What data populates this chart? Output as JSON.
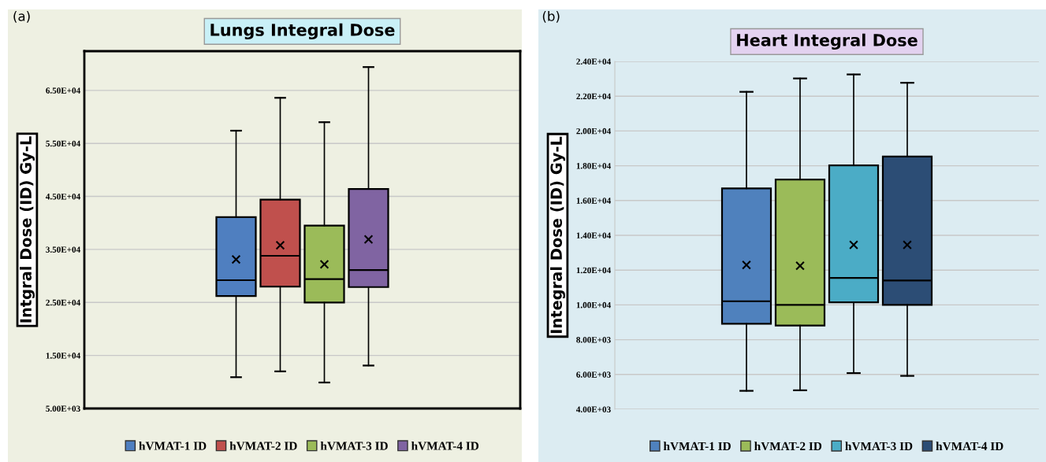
{
  "chart_data": [
    {
      "type": "box",
      "title": "Lungs Integral Dose",
      "ylabel": "Intgral Dose (ID) Gy-L",
      "annotations": [
        "(a)"
      ],
      "categories": [
        null
      ],
      "ylim": [
        5000,
        72400
      ],
      "yticks": [
        {
          "value": 5000,
          "label": "5.00E+03"
        },
        {
          "value": 15000,
          "label": "1.50E+04"
        },
        {
          "value": 25000,
          "label": "2.50E+04"
        },
        {
          "value": 35000,
          "label": "3.50E+04"
        },
        {
          "value": 45000,
          "label": "4.50E+04"
        },
        {
          "value": 55000,
          "label": "5.50E+04"
        },
        {
          "value": 65000,
          "label": "6.50E+04"
        }
      ],
      "grid": "y",
      "legend": "bottom",
      "series": [
        {
          "name": "hVMAT-1 ID",
          "color": "#4f7fc0",
          "boxes": [
            {
              "low": 10900,
              "q1": 26200,
              "median": 29200,
              "q3": 41100,
              "high": 57400,
              "mean": 33100
            }
          ]
        },
        {
          "name": "hVMAT-2 ID",
          "color": "#c0504d",
          "boxes": [
            {
              "low": 12000,
              "q1": 28000,
              "median": 33800,
              "q3": 44400,
              "high": 63600,
              "mean": 35800
            }
          ]
        },
        {
          "name": "hVMAT-3 ID",
          "color": "#9bbb59",
          "boxes": [
            {
              "low": 9900,
              "q1": 25000,
              "median": 29400,
              "q3": 39500,
              "high": 59000,
              "mean": 32200
            }
          ]
        },
        {
          "name": "hVMAT-4 ID",
          "color": "#8064a2",
          "boxes": [
            {
              "low": 13100,
              "q1": 27900,
              "median": 31100,
              "q3": 46400,
              "high": 69400,
              "mean": 36900
            }
          ]
        }
      ]
    },
    {
      "type": "box",
      "title": "Heart Integral Dose",
      "ylabel": "Integral Dose (ID) Gy-L",
      "annotations": [
        "(b)"
      ],
      "categories": [
        null
      ],
      "ylim": [
        4000,
        24000
      ],
      "yticks": [
        {
          "value": 4000,
          "label": "4.00E+03"
        },
        {
          "value": 6000,
          "label": "6.00E+03"
        },
        {
          "value": 8000,
          "label": "8.00E+03"
        },
        {
          "value": 10000,
          "label": "1.00E+04"
        },
        {
          "value": 12000,
          "label": "1.20E+04"
        },
        {
          "value": 14000,
          "label": "1.40E+04"
        },
        {
          "value": 16000,
          "label": "1.60E+04"
        },
        {
          "value": 18000,
          "label": "1.80E+04"
        },
        {
          "value": 20000,
          "label": "2.00E+04"
        },
        {
          "value": 22000,
          "label": "2.20E+04"
        },
        {
          "value": 24000,
          "label": "2.40E+04"
        }
      ],
      "grid": "y",
      "legend": "bottom",
      "series": [
        {
          "name": "hVMAT-1 ID",
          "color": "#4f81bd",
          "boxes": [
            {
              "low": 5060,
              "q1": 8920,
              "median": 10210,
              "q3": 16700,
              "high": 22250,
              "mean": 12300
            }
          ]
        },
        {
          "name": "hVMAT-2 ID",
          "color": "#9bbb59",
          "boxes": [
            {
              "low": 5090,
              "q1": 8810,
              "median": 10000,
              "q3": 17210,
              "high": 23020,
              "mean": 12250
            }
          ]
        },
        {
          "name": "hVMAT-3 ID",
          "color": "#4bacc6",
          "boxes": [
            {
              "low": 6080,
              "q1": 10150,
              "median": 11550,
              "q3": 18020,
              "high": 23250,
              "mean": 13450
            }
          ]
        },
        {
          "name": "hVMAT-4 ID",
          "color": "#2c4d75",
          "boxes": [
            {
              "low": 5920,
              "q1": 10000,
              "median": 11400,
              "q3": 18530,
              "high": 22770,
              "mean": 13450
            }
          ]
        }
      ]
    }
  ]
}
